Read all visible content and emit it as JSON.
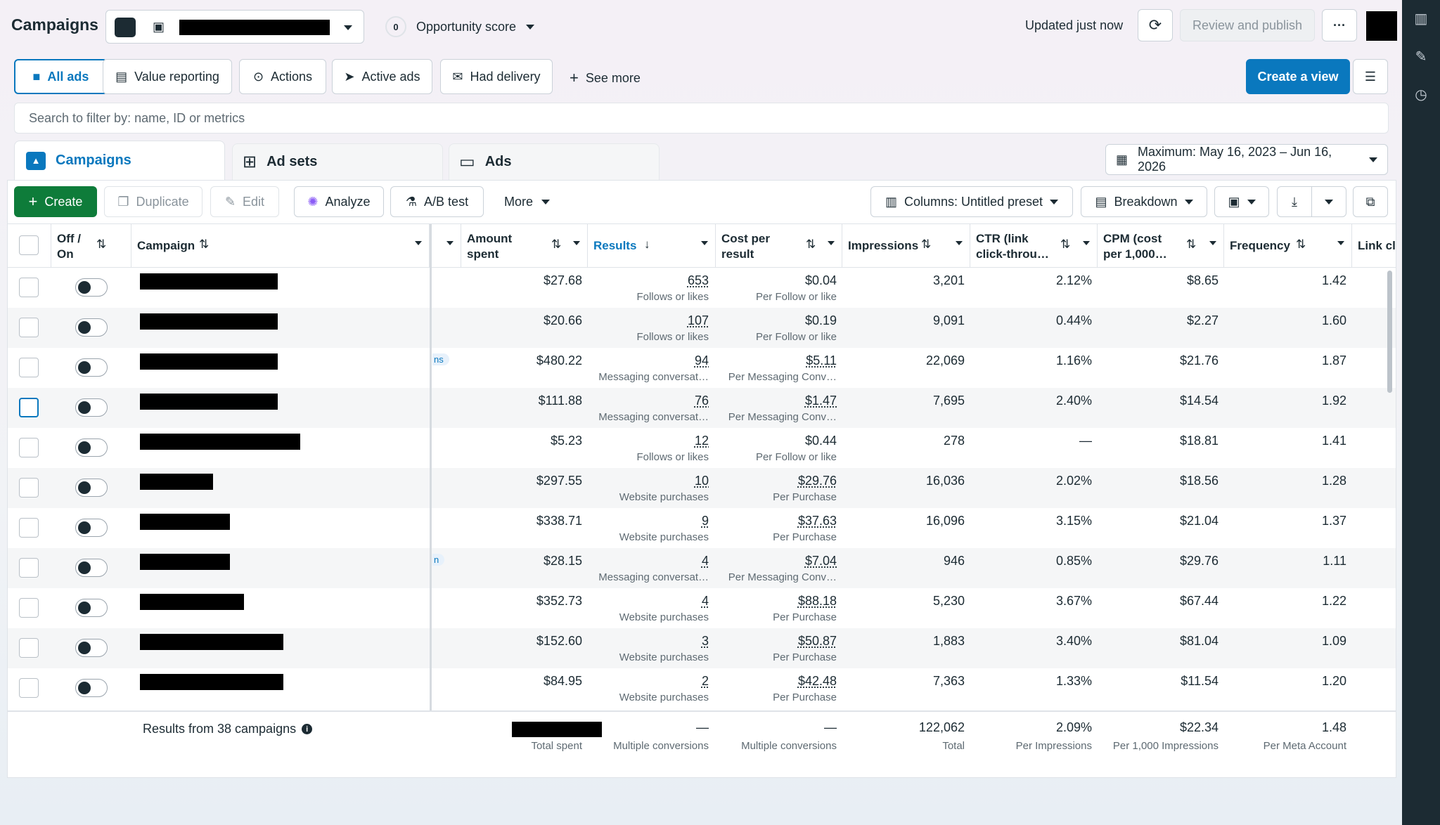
{
  "header": {
    "title": "Campaigns",
    "opportunity_badge": "0",
    "opportunity_label": "Opportunity score",
    "updated": "Updated just now",
    "review_publish": "Review and publish",
    "more_dots": "···"
  },
  "filters": {
    "all_ads": "All ads",
    "value_reporting": "Value reporting",
    "actions": "Actions",
    "active_ads": "Active ads",
    "had_delivery": "Had delivery",
    "see_more": "See more",
    "create_view": "Create a view",
    "search_placeholder": "Search to filter by: name, ID or metrics"
  },
  "tabs": {
    "campaigns": "Campaigns",
    "ad_sets": "Ad sets",
    "ads": "Ads",
    "date_range": "Maximum: May 16, 2023 – Jun 16, 2026"
  },
  "toolbar": {
    "create": "Create",
    "duplicate": "Duplicate",
    "edit": "Edit",
    "analyze": "Analyze",
    "ab_test": "A/B test",
    "more": "More",
    "columns": "Columns: Untitled preset",
    "breakdown": "Breakdown"
  },
  "columns": {
    "off_on_1": "Off /",
    "off_on_2": "On",
    "campaign": "Campaign",
    "amount_1": "Amount",
    "amount_2": "spent",
    "results": "Results",
    "cpr_1": "Cost per",
    "cpr_2": "result",
    "impressions": "Impressions",
    "ctr_1": "CTR (link",
    "ctr_2": "click-throu…",
    "cpm_1": "CPM (cost",
    "cpm_2": "per 1,000…",
    "frequency": "Frequency",
    "link_clicks": "Link cli"
  },
  "rows": [
    {
      "amount": "$27.68",
      "results": "653",
      "results_sub": "Follows or likes",
      "cpr": "$0.04",
      "cpr_sub": "Per Follow or like",
      "impressions": "3,201",
      "ctr": "2.12%",
      "cpm": "$8.65",
      "frequency": "1.42",
      "chip": ""
    },
    {
      "amount": "$20.66",
      "results": "107",
      "results_sub": "Follows or likes",
      "cpr": "$0.19",
      "cpr_sub": "Per Follow or like",
      "impressions": "9,091",
      "ctr": "0.44%",
      "cpm": "$2.27",
      "frequency": "1.60",
      "chip": ""
    },
    {
      "amount": "$480.22",
      "results": "94",
      "results_sub": "Messaging conversat…",
      "cpr": "$5.11",
      "cpr_sub": "Per Messaging Conv…",
      "impressions": "22,069",
      "ctr": "1.16%",
      "cpm": "$21.76",
      "frequency": "1.87",
      "chip": "ns"
    },
    {
      "amount": "$111.88",
      "results": "76",
      "results_sub": "Messaging conversat…",
      "cpr": "$1.47",
      "cpr_sub": "Per Messaging Conv…",
      "impressions": "7,695",
      "ctr": "2.40%",
      "cpm": "$14.54",
      "frequency": "1.92",
      "chip": ""
    },
    {
      "amount": "$5.23",
      "results": "12",
      "results_sub": "Follows or likes",
      "cpr": "$0.44",
      "cpr_sub": "Per Follow or like",
      "impressions": "278",
      "ctr": "—",
      "cpm": "$18.81",
      "frequency": "1.41",
      "chip": ""
    },
    {
      "amount": "$297.55",
      "results": "10",
      "results_sub": "Website purchases",
      "cpr": "$29.76",
      "cpr_sub": "Per Purchase",
      "impressions": "16,036",
      "ctr": "2.02%",
      "cpm": "$18.56",
      "frequency": "1.28",
      "chip": ""
    },
    {
      "amount": "$338.71",
      "results": "9",
      "results_sub": "Website purchases",
      "cpr": "$37.63",
      "cpr_sub": "Per Purchase",
      "impressions": "16,096",
      "ctr": "3.15%",
      "cpm": "$21.04",
      "frequency": "1.37",
      "chip": ""
    },
    {
      "amount": "$28.15",
      "results": "4",
      "results_sub": "Messaging conversat…",
      "cpr": "$7.04",
      "cpr_sub": "Per Messaging Conv…",
      "impressions": "946",
      "ctr": "0.85%",
      "cpm": "$29.76",
      "frequency": "1.11",
      "chip": "n"
    },
    {
      "amount": "$352.73",
      "results": "4",
      "results_sub": "Website purchases",
      "cpr": "$88.18",
      "cpr_sub": "Per Purchase",
      "impressions": "5,230",
      "ctr": "3.67%",
      "cpm": "$67.44",
      "frequency": "1.22",
      "chip": ""
    },
    {
      "amount": "$152.60",
      "results": "3",
      "results_sub": "Website purchases",
      "cpr": "$50.87",
      "cpr_sub": "Per Purchase",
      "impressions": "1,883",
      "ctr": "3.40%",
      "cpm": "$81.04",
      "frequency": "1.09",
      "chip": ""
    },
    {
      "amount": "$84.95",
      "results": "2",
      "results_sub": "Website purchases",
      "cpr": "$42.48",
      "cpr_sub": "Per Purchase",
      "impressions": "7,363",
      "ctr": "1.33%",
      "cpm": "$11.54",
      "frequency": "1.20",
      "chip": ""
    }
  ],
  "totals": {
    "label": "Results from 38 campaigns",
    "amount_sub": "Total spent",
    "results": "—",
    "results_sub": "Multiple conversions",
    "cpr": "—",
    "cpr_sub": "Multiple conversions",
    "impressions": "122,062",
    "impressions_sub": "Total",
    "ctr": "2.09%",
    "ctr_sub": "Per Impressions",
    "cpm": "$22.34",
    "cpm_sub": "Per 1,000 Impressions",
    "frequency": "1.48",
    "frequency_sub": "Per Meta Account"
  },
  "colors": {
    "primary_blue": "#0a78be",
    "create_green": "#0e7c3a",
    "rail": "#1c2b33"
  }
}
